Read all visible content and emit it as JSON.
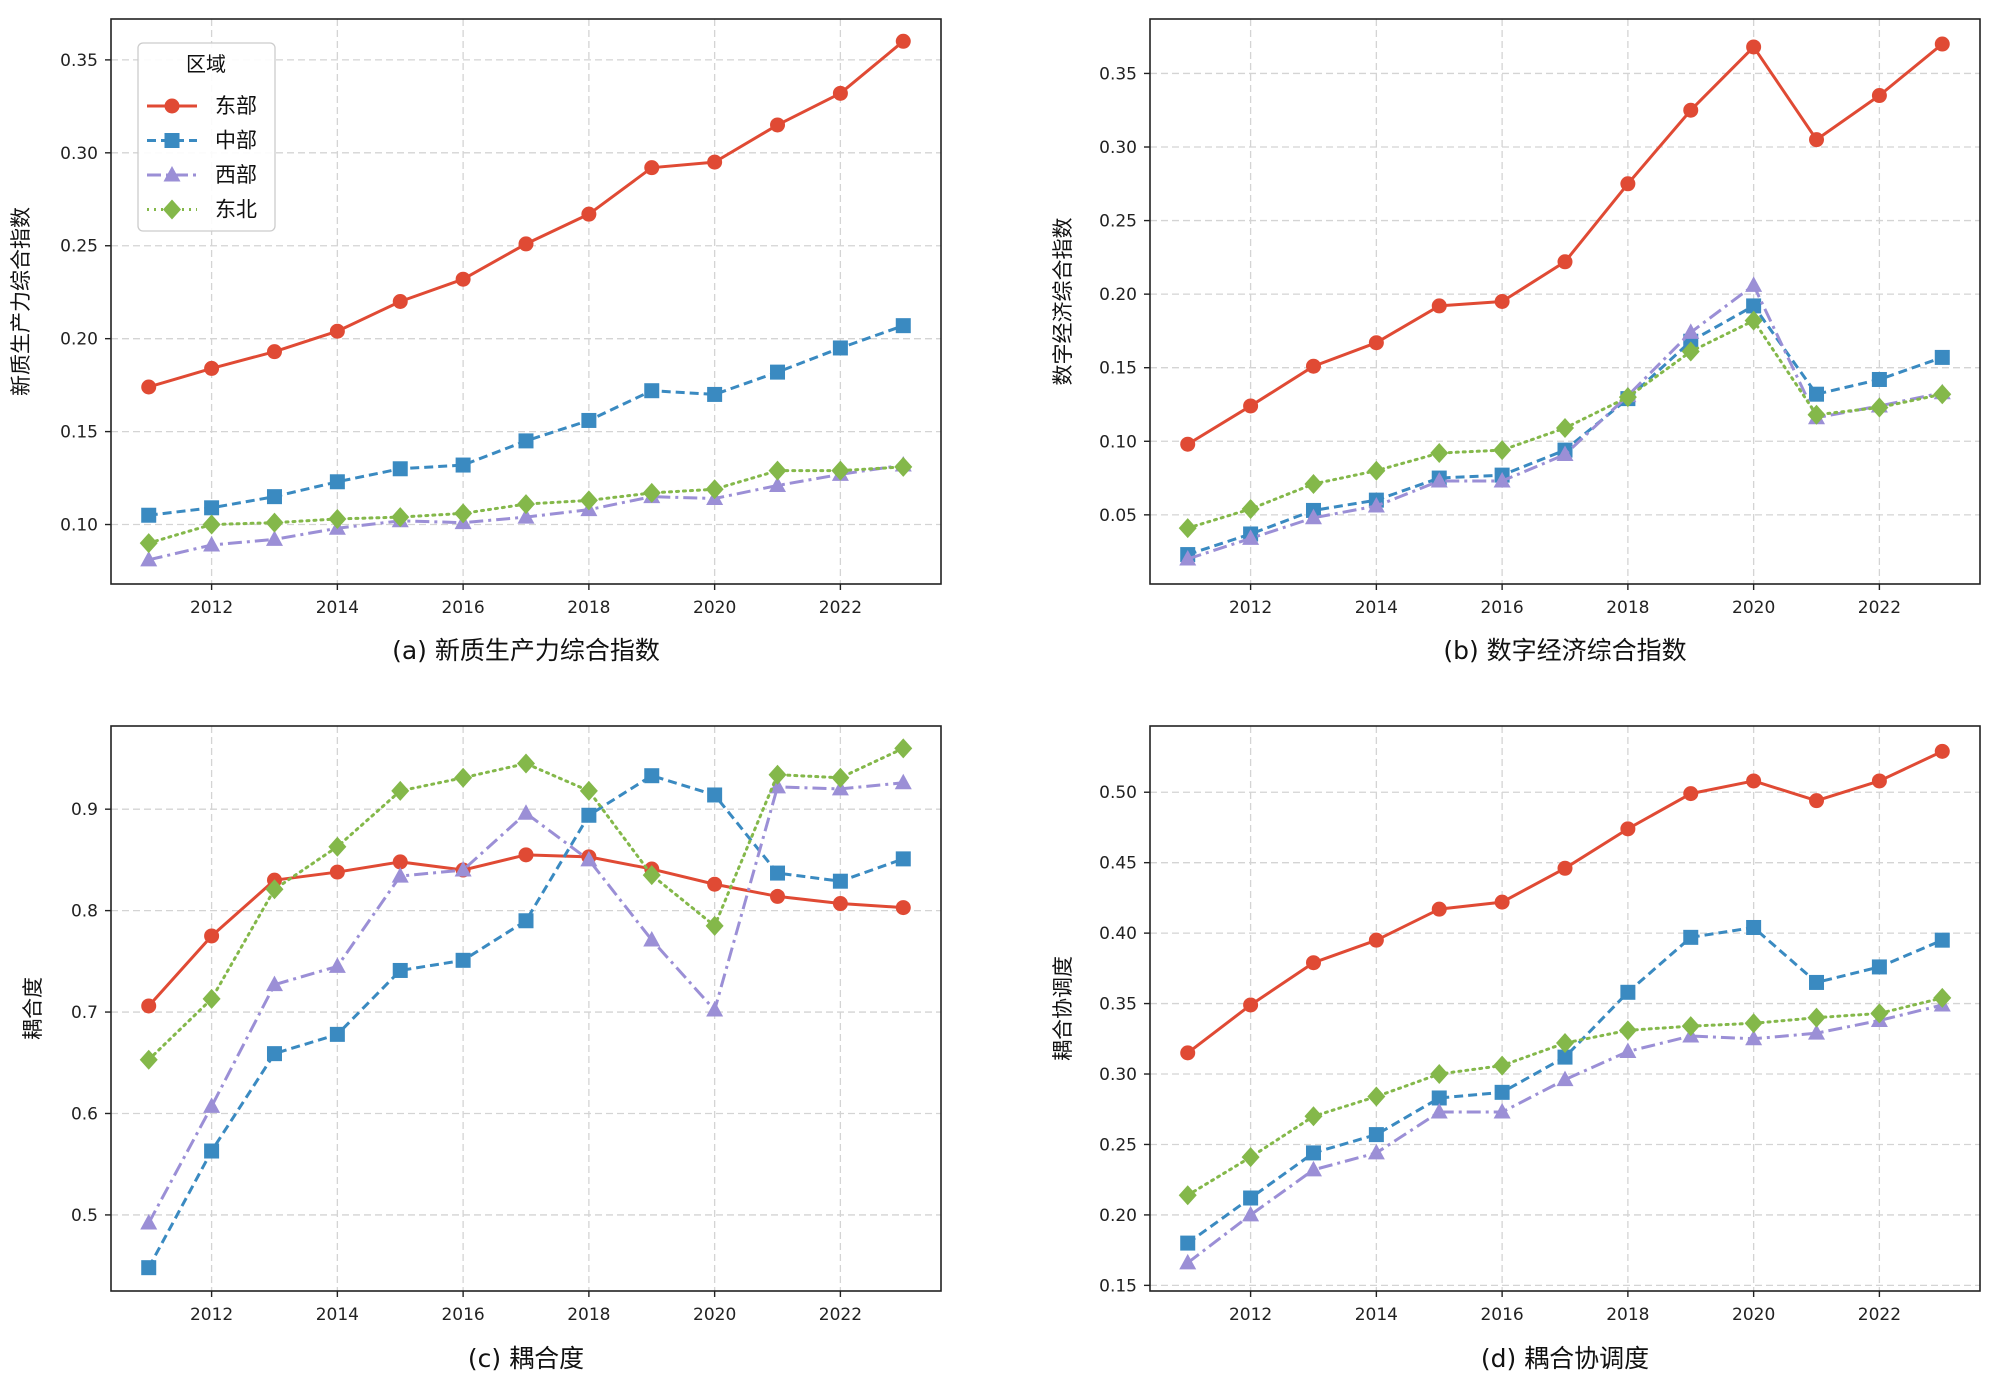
{
  "chart_data": [
    {
      "type": "line",
      "caption": "(a) 新质生产力综合指数",
      "ylabel": "新质生产力综合指数",
      "xlim": [
        2010.4,
        2023.6
      ],
      "ylim": [
        0.068,
        0.372
      ],
      "xticks": [
        2012,
        2014,
        2016,
        2018,
        2020,
        2022
      ],
      "yticks": [
        0.1,
        0.15,
        0.2,
        0.25,
        0.3,
        0.35
      ],
      "grid": true,
      "legend": {
        "title": "区域",
        "position": "top-left"
      },
      "x": [
        2011,
        2012,
        2013,
        2014,
        2015,
        2016,
        2017,
        2018,
        2019,
        2020,
        2021,
        2022,
        2023
      ],
      "series": [
        {
          "name": "东部",
          "values": [
            0.174,
            0.184,
            0.193,
            0.204,
            0.22,
            0.232,
            0.251,
            0.267,
            0.292,
            0.295,
            0.315,
            0.332,
            0.36
          ]
        },
        {
          "name": "中部",
          "values": [
            0.105,
            0.109,
            0.115,
            0.123,
            0.13,
            0.132,
            0.145,
            0.156,
            0.172,
            0.17,
            0.182,
            0.195,
            0.207
          ]
        },
        {
          "name": "西部",
          "values": [
            0.081,
            0.089,
            0.092,
            0.098,
            0.102,
            0.101,
            0.104,
            0.108,
            0.115,
            0.114,
            0.121,
            0.127,
            0.132
          ]
        },
        {
          "name": "东北",
          "values": [
            0.09,
            0.1,
            0.101,
            0.103,
            0.104,
            0.106,
            0.111,
            0.113,
            0.117,
            0.119,
            0.129,
            0.129,
            0.131
          ]
        }
      ]
    },
    {
      "type": "line",
      "caption": "(b) 数字经济综合指数",
      "ylabel": "数字经济综合指数",
      "xlim": [
        2010.4,
        2023.6
      ],
      "ylim": [
        0.003,
        0.387
      ],
      "xticks": [
        2012,
        2014,
        2016,
        2018,
        2020,
        2022
      ],
      "yticks": [
        0.05,
        0.1,
        0.15,
        0.2,
        0.25,
        0.3,
        0.35
      ],
      "grid": true,
      "x": [
        2011,
        2012,
        2013,
        2014,
        2015,
        2016,
        2017,
        2018,
        2019,
        2020,
        2021,
        2022,
        2023
      ],
      "series": [
        {
          "name": "东部",
          "values": [
            0.098,
            0.124,
            0.151,
            0.167,
            0.192,
            0.195,
            0.222,
            0.275,
            0.325,
            0.368,
            0.305,
            0.335,
            0.37
          ]
        },
        {
          "name": "中部",
          "values": [
            0.023,
            0.037,
            0.053,
            0.06,
            0.075,
            0.077,
            0.094,
            0.129,
            0.168,
            0.192,
            0.132,
            0.142,
            0.157
          ]
        },
        {
          "name": "西部",
          "values": [
            0.02,
            0.034,
            0.048,
            0.056,
            0.073,
            0.073,
            0.091,
            0.131,
            0.174,
            0.206,
            0.116,
            0.124,
            0.133
          ]
        },
        {
          "name": "东北",
          "values": [
            0.041,
            0.054,
            0.071,
            0.08,
            0.092,
            0.094,
            0.109,
            0.13,
            0.161,
            0.182,
            0.118,
            0.123,
            0.132
          ]
        }
      ]
    },
    {
      "type": "line",
      "caption": "(c) 耦合度",
      "ylabel": "耦合度",
      "xlim": [
        2010.4,
        2023.6
      ],
      "ylim": [
        0.425,
        0.982
      ],
      "xticks": [
        2012,
        2014,
        2016,
        2018,
        2020,
        2022
      ],
      "yticks": [
        0.5,
        0.6,
        0.7,
        0.8,
        0.9
      ],
      "grid": true,
      "x": [
        2011,
        2012,
        2013,
        2014,
        2015,
        2016,
        2017,
        2018,
        2019,
        2020,
        2021,
        2022,
        2023
      ],
      "series": [
        {
          "name": "东部",
          "values": [
            0.706,
            0.775,
            0.83,
            0.838,
            0.848,
            0.84,
            0.855,
            0.853,
            0.841,
            0.826,
            0.814,
            0.807,
            0.803
          ]
        },
        {
          "name": "中部",
          "values": [
            0.448,
            0.563,
            0.659,
            0.678,
            0.741,
            0.751,
            0.79,
            0.894,
            0.933,
            0.914,
            0.837,
            0.829,
            0.851
          ]
        },
        {
          "name": "西部",
          "values": [
            0.492,
            0.607,
            0.727,
            0.745,
            0.834,
            0.84,
            0.896,
            0.85,
            0.771,
            0.702,
            0.922,
            0.92,
            0.926
          ]
        },
        {
          "name": "东北",
          "values": [
            0.653,
            0.713,
            0.821,
            0.863,
            0.918,
            0.931,
            0.945,
            0.918,
            0.835,
            0.785,
            0.934,
            0.931,
            0.96
          ]
        }
      ]
    },
    {
      "type": "line",
      "caption": "(d) 耦合协调度",
      "ylabel": "耦合协调度",
      "xlim": [
        2010.4,
        2023.6
      ],
      "ylim": [
        0.146,
        0.547
      ],
      "xticks": [
        2012,
        2014,
        2016,
        2018,
        2020,
        2022
      ],
      "yticks": [
        0.15,
        0.2,
        0.25,
        0.3,
        0.35,
        0.4,
        0.45,
        0.5
      ],
      "grid": true,
      "x": [
        2011,
        2012,
        2013,
        2014,
        2015,
        2016,
        2017,
        2018,
        2019,
        2020,
        2021,
        2022,
        2023
      ],
      "series": [
        {
          "name": "东部",
          "values": [
            0.315,
            0.349,
            0.379,
            0.395,
            0.417,
            0.422,
            0.446,
            0.474,
            0.499,
            0.508,
            0.494,
            0.508,
            0.529
          ]
        },
        {
          "name": "中部",
          "values": [
            0.18,
            0.212,
            0.244,
            0.257,
            0.283,
            0.287,
            0.312,
            0.358,
            0.397,
            0.404,
            0.365,
            0.376,
            0.395
          ]
        },
        {
          "name": "西部",
          "values": [
            0.166,
            0.2,
            0.232,
            0.244,
            0.273,
            0.273,
            0.296,
            0.316,
            0.327,
            0.325,
            0.329,
            0.338,
            0.349
          ]
        },
        {
          "name": "东北",
          "values": [
            0.214,
            0.241,
            0.27,
            0.284,
            0.3,
            0.306,
            0.322,
            0.331,
            0.334,
            0.336,
            0.34,
            0.343,
            0.354
          ]
        }
      ]
    }
  ],
  "series_styles": [
    {
      "name": "东部",
      "color": "#e04a34",
      "dash": "",
      "marker": "circle"
    },
    {
      "name": "中部",
      "color": "#3a8ac1",
      "dash": "9 5",
      "marker": "square"
    },
    {
      "name": "西部",
      "color": "#9b8fd6",
      "dash": "14 5 3 5",
      "marker": "triangle"
    },
    {
      "name": "东北",
      "color": "#84b84a",
      "dash": "2 5",
      "marker": "diamond"
    }
  ]
}
